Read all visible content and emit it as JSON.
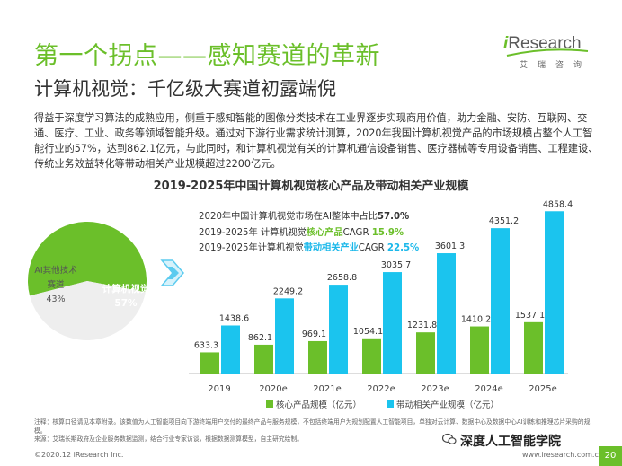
{
  "header": {
    "title": "第一个拐点——感知赛道的革新",
    "subtitle": "计算机视觉：千亿级大赛道初露端倪"
  },
  "logo": {
    "brand_i": "i",
    "brand_rest": "Research",
    "brand_cn": "艾瑞咨询",
    "color": "#6bbf2a"
  },
  "intro": "得益于深度学习算法的成熟应用，侧重于感知智能的图像分类技术在工业界逐步实现商用价值，助力金融、安防、互联网、交通、医疗、工业、政务等领域智能升级。通过对下游行业需求统计测算，2020年我国计算机视觉产品的市场规模占整个人工智能行业的57%，达到862.1亿元，与此同时，和计算机视觉有关的计算机通信设备销售、医疗器械等专用设备销售、工程建设、传统业务效益转化等带动相关产业规模超过2200亿元。",
  "info": {
    "line1_pre": "2020年中国计算机视觉市场在AI整体中占比",
    "line1_val": "57.0%",
    "line2_pre": "2019-2025年 计算机视觉",
    "line2_hl": "核心产品",
    "line2_mid": "CAGR ",
    "line2_val": "15.9%",
    "line3_pre": "2019-2025年计算机视觉",
    "line3_hl": "带动相关产业",
    "line3_mid": "CAGR ",
    "line3_val": "22.5%"
  },
  "chart_data": [
    {
      "type": "pie",
      "slices": [
        {
          "label": "计算机视觉",
          "value": 57,
          "pct_label": "57%",
          "color": "#6bbf2a"
        },
        {
          "label": "AI其他技术赛道",
          "value": 43,
          "pct_label": "43%",
          "color": "#eeeeee"
        }
      ]
    },
    {
      "type": "bar",
      "title": "2019-2025年中国计算机视觉核心产品及带动相关产业规模",
      "categories": [
        "2019",
        "2020e",
        "2021e",
        "2022e",
        "2023e",
        "2024e",
        "2025e"
      ],
      "series": [
        {
          "name": "核心产品规模（亿元）",
          "color": "#6bbf2a",
          "values": [
            633.3,
            862.1,
            969.1,
            1054.1,
            1231.8,
            1410.2,
            1537.1
          ],
          "labels": [
            "633.3",
            "862.1",
            "969.1",
            "1054.1",
            "1231.8",
            "1410.2",
            "1537.1"
          ]
        },
        {
          "name": "带动相关产业规模（亿元）",
          "color": "#1bc4ee",
          "values": [
            1438.6,
            2249.2,
            2658.8,
            3035.7,
            3601.3,
            4351.2,
            4858.4
          ],
          "labels": [
            "1438.6",
            "2249.2",
            "2658.8",
            "3035.7",
            "3601.3",
            "4351.2",
            "4858.4"
          ]
        }
      ],
      "ylim": [
        0,
        5000
      ]
    }
  ],
  "note": "注释：核算口径请见本章附录。该数值为人工智能项目向下游终端用户交付的最终产品与服务规模，不包括终端用户为规划配置人工智能项目，单独对云计算、数据中心及数据中心AI训练和推理芯片采购的规模。",
  "source": "来源：艾瑞长期政府及企业服务数据监测，结合行业专家访谈，根据数据测算模型，自主研究绘制。",
  "footer": {
    "copyright": "©2020.12 iResearch Inc.",
    "url": "www.iresearch.com.cn",
    "page": "20"
  },
  "watermark": "深度人工智能学院"
}
